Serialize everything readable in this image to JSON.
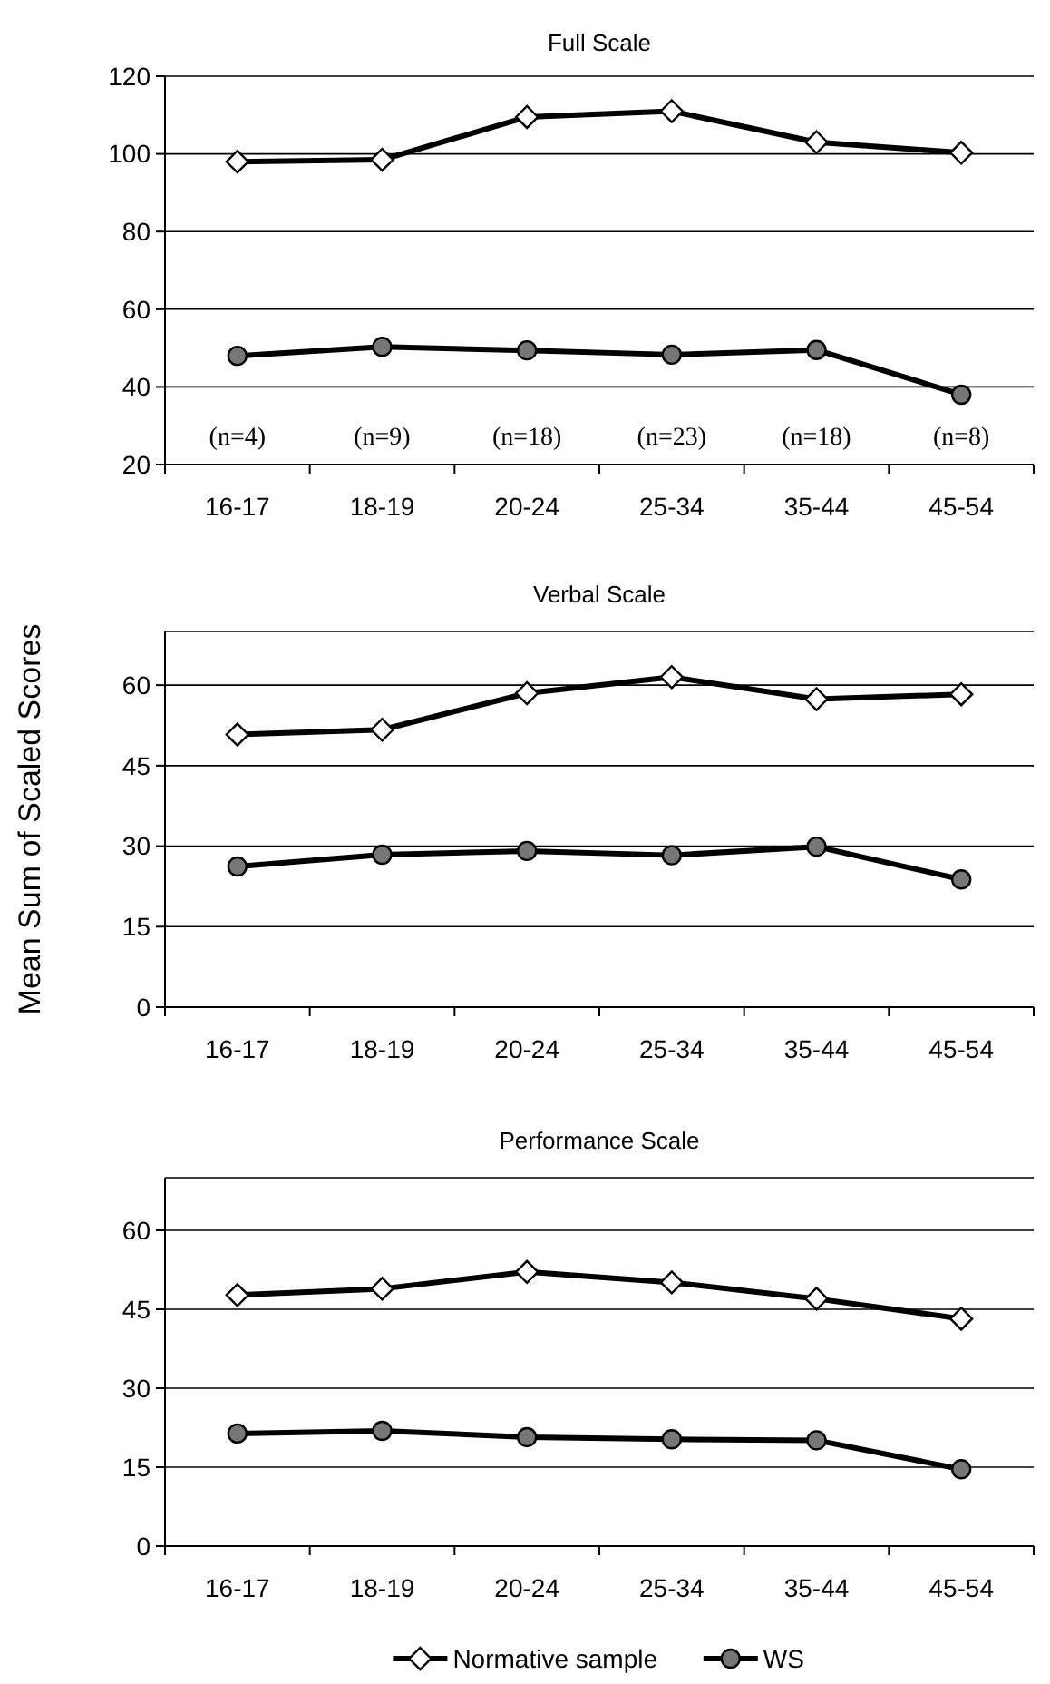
{
  "chart_data": [
    {
      "type": "line",
      "title": "Full Scale",
      "categories": [
        "16-17",
        "18-19",
        "20-24",
        "25-34",
        "35-44",
        "45-54"
      ],
      "series": [
        {
          "color": "#000000",
          "marker": "diamond",
          "values": [
            98,
            98.5,
            109.5,
            111,
            103,
            100.3
          ]
        },
        {
          "color": "#000000",
          "marker": "circle",
          "values": [
            48,
            50.3,
            49.4,
            48.3,
            49.5,
            38
          ]
        }
      ],
      "ylim": [
        20,
        120
      ],
      "yticks": [
        20,
        40,
        60,
        80,
        100,
        120
      ],
      "grid": "y",
      "legend": false,
      "annotations": [
        "(n=4)",
        "(n=9)",
        "(n=18)",
        "(n=23)",
        "(n=18)",
        "(n=8)"
      ]
    },
    {
      "type": "line",
      "title": "Verbal Scale",
      "ylabel": "Mean Sum of Scaled Scores",
      "categories": [
        "16-17",
        "18-19",
        "20-24",
        "25-34",
        "35-44",
        "45-54"
      ],
      "series": [
        {
          "color": "#000000",
          "marker": "diamond",
          "values": [
            50.8,
            51.7,
            58.5,
            61.5,
            57.4,
            58.3
          ]
        },
        {
          "color": "#000000",
          "marker": "circle",
          "values": [
            26.2,
            28.4,
            29.1,
            28.3,
            29.9,
            23.8
          ]
        }
      ],
      "ylim": [
        0,
        70
      ],
      "yticks": [
        0,
        15,
        30,
        45,
        60
      ],
      "grid": "y",
      "legend": false
    },
    {
      "type": "line",
      "title": "Performance Scale",
      "categories": [
        "16-17",
        "18-19",
        "20-24",
        "25-34",
        "35-44",
        "45-54"
      ],
      "series": [
        {
          "name": "Normative sample",
          "color": "#000000",
          "marker": "diamond",
          "values": [
            47.7,
            48.9,
            52.1,
            50.1,
            47.0,
            43.2
          ]
        },
        {
          "name": "WS",
          "color": "#000000",
          "marker": "circle",
          "values": [
            21.4,
            21.9,
            20.7,
            20.3,
            20.1,
            14.6
          ]
        }
      ],
      "ylim": [
        0,
        70
      ],
      "yticks": [
        0,
        15,
        30,
        45,
        60
      ],
      "grid": "y",
      "legend": "bottom"
    }
  ]
}
